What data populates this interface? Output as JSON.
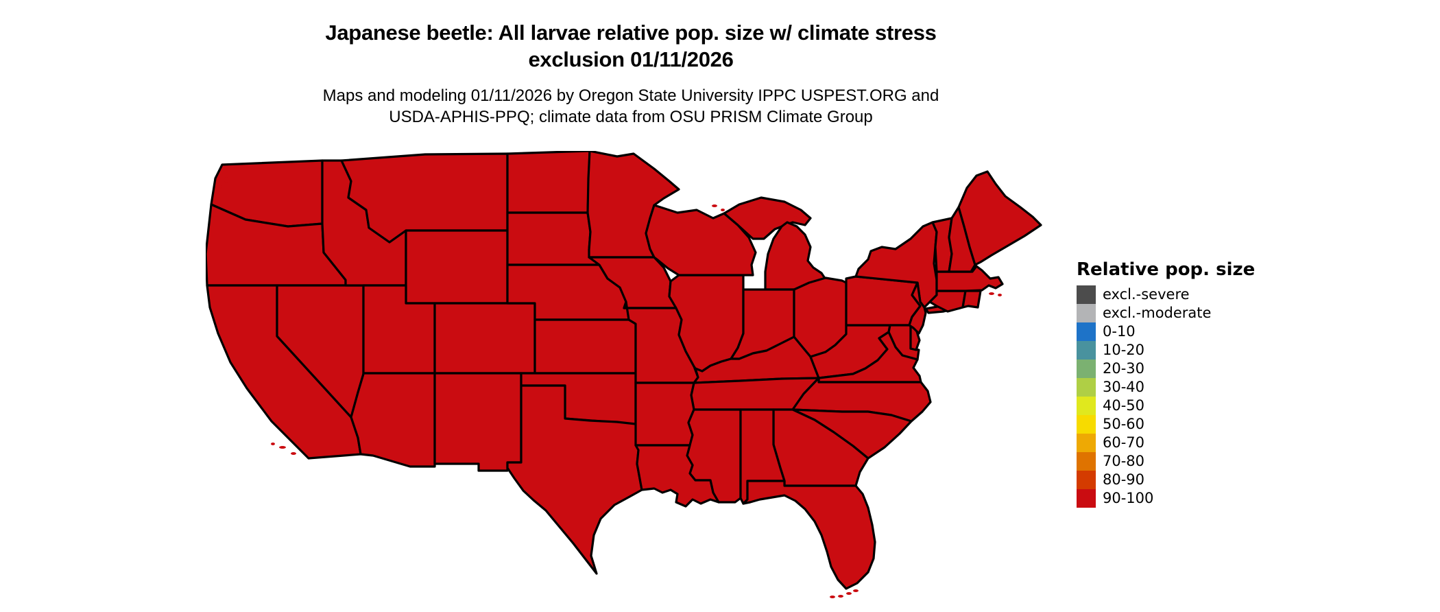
{
  "title": {
    "line1": "Japanese beetle: All larvae relative pop. size w/ climate stress",
    "line2": "exclusion 01/11/2026"
  },
  "subtitle": {
    "line1": "Maps and modeling 01/11/2026 by Oregon State University IPPC USPEST.ORG and",
    "line2": "USDA-APHIS-PPQ; climate data from OSU PRISM Climate Group"
  },
  "map": {
    "region": "contiguous United States",
    "fill_color": "#CA0C11",
    "border_color": "#000000",
    "background_color": "#ffffff"
  },
  "legend": {
    "title": "Relative pop. size",
    "items": [
      {
        "label": "excl.-severe",
        "color": "#4C4C4C"
      },
      {
        "label": "excl.-moderate",
        "color": "#B3B4B6"
      },
      {
        "label": "0-10",
        "color": "#1E73C8"
      },
      {
        "label": "10-20",
        "color": "#49929E"
      },
      {
        "label": "20-30",
        "color": "#7BB171"
      },
      {
        "label": "30-40",
        "color": "#AFCF45"
      },
      {
        "label": "40-50",
        "color": "#E0E81E"
      },
      {
        "label": "50-60",
        "color": "#F7DB00"
      },
      {
        "label": "60-70",
        "color": "#EEA904"
      },
      {
        "label": "70-80",
        "color": "#DF7300"
      },
      {
        "label": "80-90",
        "color": "#D43B00"
      },
      {
        "label": "90-100",
        "color": "#CA0C11"
      }
    ]
  },
  "chart_data": {
    "type": "heatmap",
    "subtype": "choropleth-map",
    "title": "Japanese beetle: All larvae relative pop. size w/ climate stress exclusion 01/11/2026",
    "legend_title": "Relative pop. size",
    "categories": [
      "excl.-severe",
      "excl.-moderate",
      "0-10",
      "10-20",
      "20-30",
      "30-40",
      "40-50",
      "50-60",
      "60-70",
      "70-80",
      "80-90",
      "90-100"
    ],
    "regions": "all 48 contiguous U.S. states shown",
    "values": "every state/area on the map is in the 90-100 class (uniform red)",
    "legend_position": "right"
  }
}
